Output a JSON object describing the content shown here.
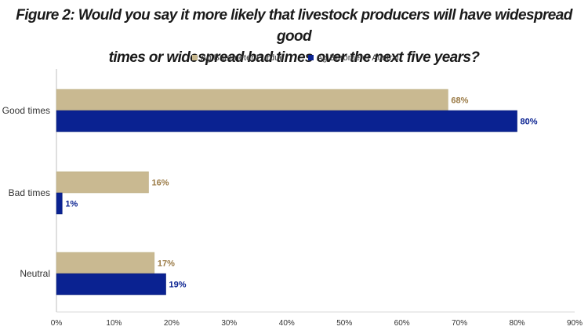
{
  "chart_data": {
    "type": "bar",
    "orientation": "horizontal",
    "title_lines": [
      "Figure 2: Would you say it more likely that livestock producers will have widespread good",
      "times or widespread bad times over the next five years?"
    ],
    "categories": [
      "Good times",
      "Bad times",
      "Neutral"
    ],
    "series": [
      {
        "name": "Ag Barometer Purdue",
        "values": [
          68,
          16,
          17
        ],
        "labels": [
          "68%",
          "16%",
          "17%"
        ],
        "color": "#c9b991",
        "label_color": "#9a7a45"
      },
      {
        "name": "Ag Barometer Austral",
        "values": [
          80,
          1,
          19
        ],
        "labels": [
          "80%",
          "1%",
          "19%"
        ],
        "color": "#0a2291",
        "label_color": "#0a2291"
      }
    ],
    "xlim": [
      0,
      90
    ],
    "xticks": [
      0,
      10,
      20,
      30,
      40,
      50,
      60,
      70,
      80,
      90
    ],
    "xtick_labels": [
      "0%",
      "10%",
      "20%",
      "30%",
      "40%",
      "50%",
      "60%",
      "70%",
      "80%",
      "90%"
    ],
    "legend_position": "top",
    "grid": false
  }
}
